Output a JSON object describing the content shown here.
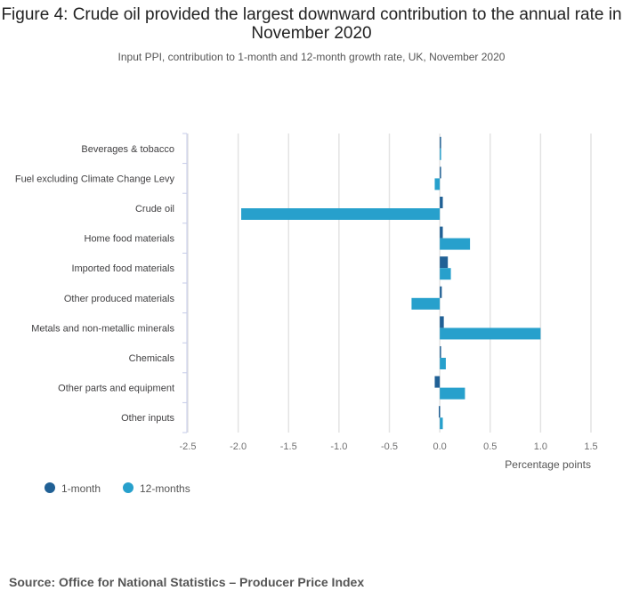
{
  "title": "Figure 4: Crude oil provided the largest downward contribution to the annual rate in November 2020",
  "subtitle": "Input PPI, contribution to 1-month and 12-month growth rate, UK, November 2020",
  "source": "Source: Office for National Statistics – Producer Price Index",
  "chart_data": {
    "type": "bar",
    "orientation": "horizontal",
    "categories": [
      "Beverages & tobacco",
      "Fuel excluding Climate Change Levy",
      "Crude oil",
      "Home food materials",
      "Imported food materials",
      "Other produced materials",
      "Metals and non-metallic minerals",
      "Chemicals",
      "Other parts and equipment",
      "Other inputs"
    ],
    "series": [
      {
        "name": "1-month",
        "color": "#206095",
        "values": [
          0.0,
          0.005,
          0.03,
          0.03,
          0.08,
          0.02,
          0.04,
          0.01,
          -0.05,
          -0.01
        ]
      },
      {
        "name": "12-months",
        "color": "#27a0cc",
        "values": [
          0.01,
          -0.05,
          -1.97,
          0.3,
          0.11,
          -0.28,
          1.0,
          0.06,
          0.25,
          0.03
        ]
      }
    ],
    "xlabel": "Percentage points",
    "xlim": [
      -2.5,
      1.5
    ],
    "xticks": [
      "-2.5",
      "-2.0",
      "-1.5",
      "-1.0",
      "-0.5",
      "0.0",
      "0.5",
      "1.0",
      "1.5"
    ],
    "grid": true,
    "legend": "bottom-left"
  }
}
